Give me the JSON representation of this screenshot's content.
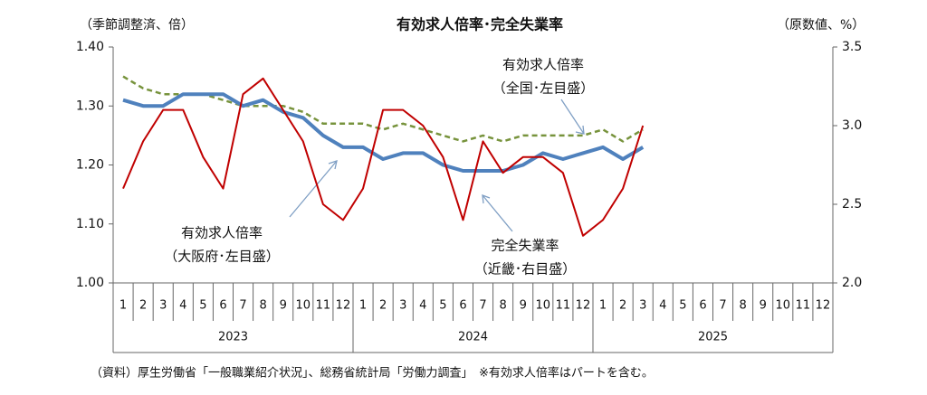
{
  "chart_data": {
    "type": "line",
    "title": "有効求人倍率･完全失業率",
    "ylabel": "（季節調整済、倍）",
    "y2label": "（原数値、%）",
    "categories": [
      "1",
      "2",
      "3",
      "4",
      "5",
      "6",
      "7",
      "8",
      "9",
      "10",
      "11",
      "12",
      "1",
      "2",
      "3",
      "4",
      "5",
      "6",
      "7",
      "8",
      "9",
      "10",
      "11",
      "12",
      "1",
      "2",
      "3",
      "4",
      "5",
      "6",
      "7",
      "8",
      "9",
      "10",
      "11",
      "12"
    ],
    "years": [
      "2023",
      "2024",
      "2025"
    ],
    "ylim": [
      1.0,
      1.4
    ],
    "yticks": [
      {
        "value": 1.0,
        "label": "1.00"
      },
      {
        "value": 1.1,
        "label": "1.10"
      },
      {
        "value": 1.2,
        "label": "1.20"
      },
      {
        "value": 1.3,
        "label": "1.30"
      },
      {
        "value": 1.4,
        "label": "1.40"
      }
    ],
    "y2lim": [
      2.0,
      3.5
    ],
    "y2ticks": [
      {
        "value": 2.0,
        "label": "2.0"
      },
      {
        "value": 2.5,
        "label": "2.5"
      },
      {
        "value": 3.0,
        "label": "3.0"
      },
      {
        "value": 3.5,
        "label": "3.5"
      }
    ],
    "grid": false,
    "series": [
      {
        "name": "有効求人倍率（全国）",
        "color": "#77933c",
        "dash": true,
        "values": [
          1.35,
          1.33,
          1.32,
          1.32,
          1.32,
          1.31,
          1.3,
          1.3,
          1.3,
          1.29,
          1.27,
          1.27,
          1.27,
          1.26,
          1.27,
          1.26,
          1.25,
          1.24,
          1.25,
          1.24,
          1.25,
          1.25,
          1.25,
          1.25,
          1.26,
          1.24,
          1.26,
          null,
          null,
          null,
          null,
          null,
          null,
          null,
          null,
          null
        ]
      },
      {
        "name": "有効求人倍率（大阪府）",
        "color": "#4f81bd",
        "dash": false,
        "values": [
          1.31,
          1.3,
          1.3,
          1.32,
          1.32,
          1.32,
          1.3,
          1.31,
          1.29,
          1.28,
          1.25,
          1.23,
          1.23,
          1.21,
          1.22,
          1.22,
          1.2,
          1.19,
          1.19,
          1.19,
          1.2,
          1.22,
          1.21,
          1.22,
          1.23,
          1.21,
          1.23,
          null,
          null,
          null,
          null,
          null,
          null,
          null,
          null,
          null
        ]
      },
      {
        "name": "完全失業率（近畿）",
        "color": "#c00000",
        "dash": false,
        "axis": "y2",
        "values": [
          2.6,
          2.9,
          3.1,
          3.1,
          2.8,
          2.6,
          3.2,
          3.3,
          3.1,
          2.9,
          2.5,
          2.4,
          2.6,
          3.1,
          3.1,
          3.0,
          2.8,
          2.4,
          2.9,
          2.7,
          2.8,
          2.8,
          2.7,
          2.3,
          2.4,
          2.6,
          3.0,
          null,
          null,
          null,
          null,
          null,
          null,
          null,
          null,
          null
        ]
      }
    ],
    "annotations": [
      [
        "有効求人倍率",
        "（全国･左目盛）"
      ],
      [
        "有効求人倍率",
        "（大阪府･左目盛）"
      ],
      [
        "完全失業率",
        "（近畿･右目盛）"
      ]
    ]
  },
  "footer": "（資料）厚生労働省「一般職業紹介状況」、総務省統計局「労働力調査」　※有効求人倍率はパートを含む。"
}
